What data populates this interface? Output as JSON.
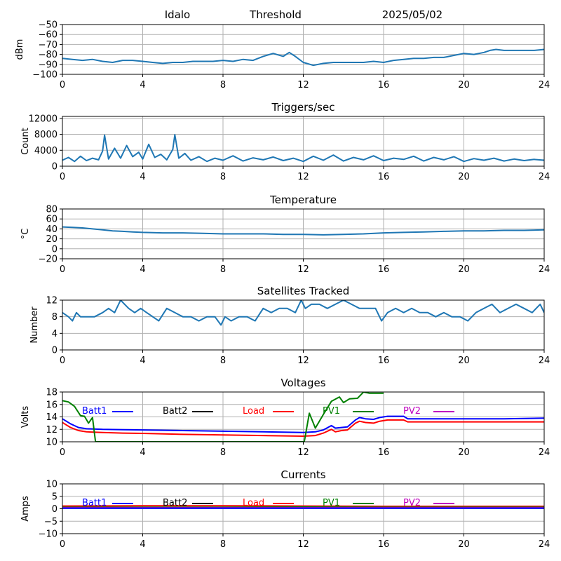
{
  "header": {
    "site": "Idalo",
    "threshold": "Threshold",
    "date": "2025/05/02"
  },
  "colors": {
    "series": "#1f77b4",
    "batt1": "#0000ff",
    "batt2": "#000000",
    "load": "#ff0000",
    "pv1": "#008000",
    "pv2": "#bf00bf",
    "grid": "#b0b0b0"
  },
  "chart_data": [
    {
      "id": "threshold",
      "type": "line",
      "title": "",
      "ylabel": "dBm",
      "xlim": [
        0,
        24
      ],
      "ylim": [
        -100,
        -50
      ],
      "xticks": [
        0,
        4,
        8,
        12,
        16,
        20,
        24
      ],
      "yticks": [
        -100,
        -90,
        -80,
        -70,
        -60,
        -50
      ],
      "grid": true,
      "series": [
        {
          "color": "#1f77b4",
          "x": [
            0,
            0.5,
            1,
            1.5,
            2,
            2.5,
            3,
            3.5,
            4,
            4.5,
            5,
            5.5,
            6,
            6.5,
            7,
            7.5,
            8,
            8.5,
            9,
            9.5,
            10,
            10.5,
            11,
            11.3,
            11.6,
            12,
            12.5,
            13,
            13.5,
            14,
            14.5,
            15,
            15.5,
            16,
            16.5,
            17,
            17.5,
            18,
            18.5,
            19,
            19.5,
            20,
            20.5,
            21,
            21.3,
            21.6,
            22,
            22.5,
            23,
            23.5,
            24
          ],
          "y": [
            -84,
            -85,
            -86,
            -85,
            -87,
            -88,
            -86,
            -86,
            -87,
            -88,
            -89,
            -88,
            -88,
            -87,
            -87,
            -87,
            -86,
            -87,
            -85,
            -86,
            -82,
            -79,
            -82,
            -78,
            -82,
            -88,
            -91,
            -89,
            -88,
            -88,
            -88,
            -88,
            -87,
            -88,
            -86,
            -85,
            -84,
            -84,
            -83,
            -83,
            -81,
            -79,
            -80,
            -78,
            -76,
            -75,
            -76,
            -76,
            -76,
            -76,
            -75
          ]
        }
      ]
    },
    {
      "id": "triggers",
      "type": "line",
      "title": "Triggers/sec",
      "ylabel": "Count",
      "xlim": [
        0,
        24
      ],
      "ylim": [
        0,
        12500
      ],
      "xticks": [
        0,
        4,
        8,
        12,
        16,
        20,
        24
      ],
      "yticks": [
        0,
        4000,
        8000,
        12000
      ],
      "grid": true,
      "series": [
        {
          "color": "#1f77b4",
          "x": [
            0,
            0.3,
            0.6,
            0.9,
            1.2,
            1.5,
            1.8,
            2.0,
            2.1,
            2.3,
            2.6,
            2.9,
            3.2,
            3.5,
            3.8,
            4.0,
            4.3,
            4.6,
            4.9,
            5.2,
            5.5,
            5.6,
            5.8,
            6.1,
            6.4,
            6.8,
            7.2,
            7.6,
            8.0,
            8.5,
            9.0,
            9.5,
            10.0,
            10.5,
            11.0,
            11.5,
            12.0,
            12.5,
            13.0,
            13.5,
            14.0,
            14.5,
            15.0,
            15.5,
            16.0,
            16.5,
            17.0,
            17.5,
            18.0,
            18.5,
            19.0,
            19.5,
            20.0,
            20.5,
            21.0,
            21.5,
            22.0,
            22.5,
            23.0,
            23.5,
            24
          ],
          "y": [
            1500,
            2200,
            1200,
            2500,
            1400,
            2000,
            1600,
            3800,
            7800,
            1800,
            4500,
            2000,
            5200,
            2400,
            3500,
            1800,
            5500,
            2200,
            3000,
            1600,
            4200,
            7900,
            2000,
            3200,
            1500,
            2400,
            1200,
            2000,
            1500,
            2600,
            1300,
            2100,
            1600,
            2300,
            1400,
            2000,
            1200,
            2500,
            1500,
            2800,
            1300,
            2200,
            1600,
            2600,
            1400,
            2000,
            1700,
            2500,
            1300,
            2200,
            1600,
            2400,
            1200,
            1900,
            1500,
            2000,
            1300,
            1800,
            1400,
            1700,
            1500
          ]
        }
      ]
    },
    {
      "id": "temperature",
      "type": "line",
      "title": "Temperature",
      "ylabel": "°C",
      "xlim": [
        0,
        24
      ],
      "ylim": [
        -20,
        80
      ],
      "xticks": [
        0,
        4,
        8,
        12,
        16,
        20,
        24
      ],
      "yticks": [
        -20,
        0,
        20,
        40,
        60,
        80
      ],
      "grid": true,
      "series": [
        {
          "color": "#1f77b4",
          "x": [
            0,
            0.5,
            1,
            1.5,
            2,
            2.5,
            3,
            3.5,
            4,
            5,
            6,
            7,
            8,
            9,
            10,
            11,
            12,
            13,
            14,
            15,
            16,
            17,
            18,
            19,
            20,
            21,
            22,
            23,
            24
          ],
          "y": [
            44,
            43,
            42,
            40,
            38,
            36,
            35,
            34,
            33,
            32,
            32,
            31,
            30,
            30,
            30,
            29,
            29,
            28,
            29,
            30,
            32,
            33,
            34,
            35,
            36,
            36,
            37,
            37,
            38
          ]
        }
      ]
    },
    {
      "id": "satellites",
      "type": "line",
      "title": "Satellites Tracked",
      "ylabel": "Number",
      "xlim": [
        0,
        24
      ],
      "ylim": [
        0,
        12
      ],
      "xticks": [
        0,
        4,
        8,
        12,
        16,
        20,
        24
      ],
      "yticks": [
        0,
        4,
        8,
        12
      ],
      "grid": true,
      "series": [
        {
          "color": "#1f77b4",
          "x": [
            0,
            0.3,
            0.5,
            0.7,
            0.9,
            1.2,
            1.6,
            2.0,
            2.3,
            2.6,
            2.9,
            3.1,
            3.3,
            3.6,
            3.9,
            4.2,
            4.5,
            4.8,
            5.2,
            5.6,
            6.0,
            6.4,
            6.8,
            7.2,
            7.6,
            7.9,
            8.1,
            8.4,
            8.8,
            9.2,
            9.6,
            10.0,
            10.4,
            10.8,
            11.2,
            11.6,
            11.9,
            12.1,
            12.4,
            12.8,
            13.2,
            13.6,
            14.0,
            14.4,
            14.8,
            15.2,
            15.6,
            15.9,
            16.2,
            16.6,
            17.0,
            17.4,
            17.8,
            18.2,
            18.6,
            19.0,
            19.4,
            19.8,
            20.2,
            20.6,
            21.0,
            21.4,
            21.8,
            22.2,
            22.6,
            23.0,
            23.4,
            23.8,
            24
          ],
          "y": [
            9,
            8,
            7,
            9,
            8,
            8,
            8,
            9,
            10,
            9,
            12,
            11,
            10,
            9,
            10,
            9,
            8,
            7,
            10,
            9,
            8,
            8,
            7,
            8,
            8,
            6,
            8,
            7,
            8,
            8,
            7,
            10,
            9,
            10,
            10,
            9,
            12,
            10,
            11,
            11,
            10,
            11,
            12,
            11,
            10,
            10,
            10,
            7,
            9,
            10,
            9,
            10,
            9,
            9,
            8,
            9,
            8,
            8,
            7,
            9,
            10,
            11,
            9,
            10,
            11,
            10,
            9,
            11,
            9
          ]
        }
      ]
    },
    {
      "id": "voltages",
      "type": "line",
      "title": "Voltages",
      "ylabel": "Volts",
      "xlim": [
        0,
        24
      ],
      "ylim": [
        10,
        18
      ],
      "xticks": [
        0,
        4,
        8,
        12,
        16,
        20,
        24
      ],
      "yticks": [
        10,
        12,
        14,
        16,
        18
      ],
      "grid": true,
      "legend": [
        "Batt1",
        "Batt2",
        "Load",
        "PV1",
        "PV2"
      ],
      "series": [
        {
          "name": "Batt1",
          "color": "#0000ff",
          "x": [
            0,
            0.4,
            0.8,
            1.2,
            2,
            3,
            4,
            6,
            8,
            10,
            12,
            12.6,
            13,
            13.4,
            13.6,
            13.9,
            14.2,
            14.6,
            14.8,
            15.1,
            15.5,
            15.8,
            16.2,
            16.6,
            17,
            17.2,
            18,
            20,
            22,
            24
          ],
          "y": [
            13.7,
            12.9,
            12.3,
            12.1,
            12.0,
            11.95,
            11.9,
            11.8,
            11.7,
            11.6,
            11.5,
            11.6,
            11.9,
            12.6,
            12.2,
            12.3,
            12.4,
            13.5,
            13.9,
            13.7,
            13.6,
            13.9,
            14.1,
            14.1,
            14.1,
            13.7,
            13.7,
            13.7,
            13.7,
            13.8
          ]
        },
        {
          "name": "Load",
          "color": "#ff0000",
          "x": [
            0,
            0.4,
            0.8,
            1.2,
            2,
            3,
            4,
            6,
            8,
            10,
            12,
            12.6,
            13,
            13.4,
            13.6,
            13.9,
            14.2,
            14.6,
            14.8,
            15.1,
            15.5,
            15.8,
            16.2,
            16.6,
            17,
            17.2,
            18,
            20,
            22,
            24
          ],
          "y": [
            13.1,
            12.3,
            11.8,
            11.6,
            11.5,
            11.4,
            11.35,
            11.2,
            11.1,
            11.0,
            10.9,
            11.0,
            11.4,
            12.0,
            11.6,
            11.8,
            11.9,
            13.0,
            13.3,
            13.1,
            13.0,
            13.3,
            13.5,
            13.5,
            13.5,
            13.2,
            13.2,
            13.2,
            13.2,
            13.2
          ]
        },
        {
          "name": "PV1",
          "color": "#008000",
          "x": [
            0,
            0.3,
            0.6,
            0.9,
            1.1,
            1.3,
            1.5,
            1.65,
            12.05,
            12.3,
            12.6,
            13.0,
            13.4,
            13.8,
            14.0,
            14.3,
            14.7,
            15.0,
            15.3,
            16.0
          ],
          "y": [
            16.6,
            16.4,
            15.7,
            14.2,
            14.1,
            13.0,
            13.9,
            10.0,
            10.0,
            14.6,
            12.2,
            14.4,
            16.5,
            17.2,
            16.3,
            16.9,
            17.0,
            18.0,
            17.8,
            17.8
          ]
        }
      ]
    },
    {
      "id": "currents",
      "type": "line",
      "title": "Currents",
      "ylabel": "Amps",
      "xlim": [
        0,
        24
      ],
      "ylim": [
        -10,
        10
      ],
      "xticks": [
        0,
        4,
        8,
        12,
        16,
        20,
        24
      ],
      "yticks": [
        -10,
        -5,
        0,
        5,
        10
      ],
      "grid": true,
      "legend": [
        "Batt1",
        "Batt2",
        "Load",
        "PV1",
        "PV2"
      ],
      "series": [
        {
          "name": "Load",
          "color": "#ff0000",
          "x": [
            0,
            4,
            8,
            12,
            16,
            20,
            24
          ],
          "y": [
            1.1,
            1.2,
            1.2,
            1.1,
            1.0,
            1.0,
            1.0
          ]
        },
        {
          "name": "PV1",
          "color": "#008000",
          "x": [
            0,
            4,
            8,
            12,
            16,
            20,
            24
          ],
          "y": [
            0.6,
            0.6,
            0.6,
            0.7,
            0.6,
            0.6,
            0.6
          ]
        },
        {
          "name": "PV2",
          "color": "#bf00bf",
          "x": [
            0,
            4,
            8,
            12,
            16,
            20,
            24
          ],
          "y": [
            0.4,
            0.4,
            0.4,
            0.4,
            0.4,
            0.4,
            0.4
          ]
        },
        {
          "name": "Batt1",
          "color": "#0000ff",
          "x": [
            0,
            4,
            8,
            12,
            16,
            20,
            24
          ],
          "y": [
            0.2,
            0.2,
            0.2,
            0.2,
            0.2,
            0.2,
            0.2
          ]
        }
      ]
    }
  ]
}
